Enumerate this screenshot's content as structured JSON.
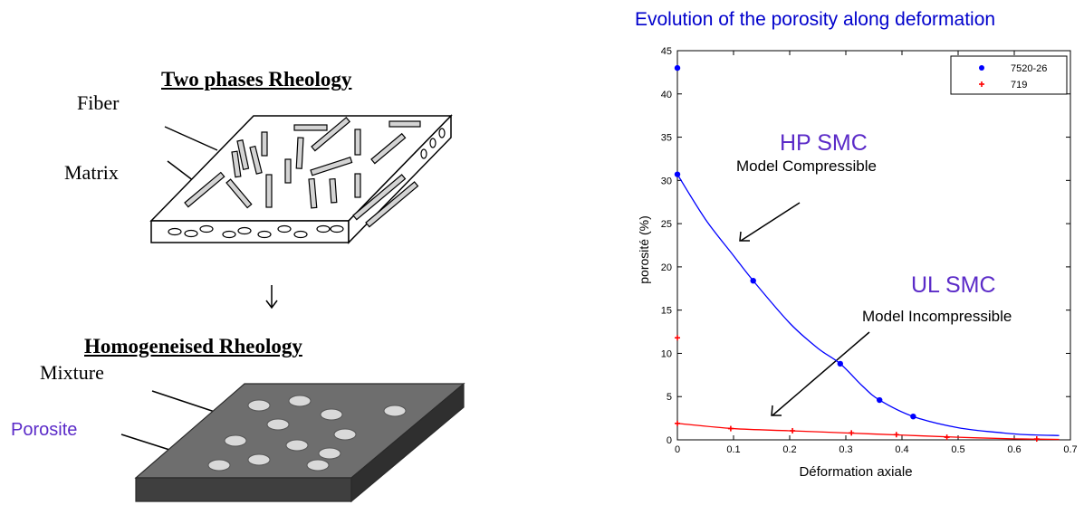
{
  "left_panel": {
    "two_phase_heading": "Two phases Rheology",
    "fiber_label": "Fiber",
    "matrix_label": "Matrix",
    "homogeneised_heading": "Homogeneised Rheology",
    "mixture_label": "Mixture",
    "porosite_label": "Porosite",
    "colors": {
      "porosite": "#5b2bc8",
      "plate_top": "#6e6e6e",
      "plate_side": "#3a3a3a",
      "pore": "#d9d9d9"
    }
  },
  "chart_title": "Evolution of the porosity along deformation",
  "annotations": {
    "hp_title": "HP SMC",
    "hp_model": "Model Compressible",
    "ul_title": "UL SMC",
    "ul_model": "Model Incompressible"
  },
  "chart_data": {
    "type": "scatter",
    "xlabel": "Déformation axiale",
    "ylabel": "porosité (%)",
    "xlim": [
      0,
      0.7
    ],
    "ylim": [
      0,
      45
    ],
    "x_ticks": [
      "0",
      "0.1",
      "0.2",
      "0.3",
      "0.4",
      "0.5",
      "0.6",
      "0.7"
    ],
    "y_ticks": [
      "0",
      "5",
      "10",
      "15",
      "20",
      "25",
      "30",
      "35",
      "40",
      "45"
    ],
    "legend_position": "top-right",
    "grid": false,
    "series": [
      {
        "name": "7520-26",
        "color": "#0000ff",
        "marker": "dot",
        "points": [
          [
            0,
            43
          ],
          [
            0,
            30.7
          ],
          [
            0.135,
            18.4
          ],
          [
            0.29,
            8.8
          ],
          [
            0.36,
            4.6
          ],
          [
            0.42,
            2.7
          ]
        ],
        "fit": [
          [
            0,
            30.7
          ],
          [
            0.05,
            25.5
          ],
          [
            0.1,
            21.3
          ],
          [
            0.135,
            18.4
          ],
          [
            0.2,
            13.5
          ],
          [
            0.25,
            10.6
          ],
          [
            0.29,
            8.8
          ],
          [
            0.33,
            6.2
          ],
          [
            0.36,
            4.6
          ],
          [
            0.42,
            2.7
          ],
          [
            0.5,
            1.4
          ],
          [
            0.58,
            0.8
          ],
          [
            0.62,
            0.6
          ],
          [
            0.68,
            0.5
          ]
        ]
      },
      {
        "name": "719",
        "color": "#ff0000",
        "marker": "plus",
        "points": [
          [
            0,
            11.8
          ],
          [
            0,
            1.9
          ],
          [
            0.095,
            1.3
          ],
          [
            0.205,
            1.05
          ],
          [
            0.31,
            0.8
          ],
          [
            0.39,
            0.6
          ],
          [
            0.48,
            0.3
          ],
          [
            0.64,
            0.1
          ]
        ],
        "fit": [
          [
            0,
            1.9
          ],
          [
            0.1,
            1.3
          ],
          [
            0.2,
            1.05
          ],
          [
            0.3,
            0.8
          ],
          [
            0.4,
            0.55
          ],
          [
            0.5,
            0.3
          ],
          [
            0.6,
            0.12
          ],
          [
            0.68,
            0.05
          ]
        ]
      }
    ]
  }
}
